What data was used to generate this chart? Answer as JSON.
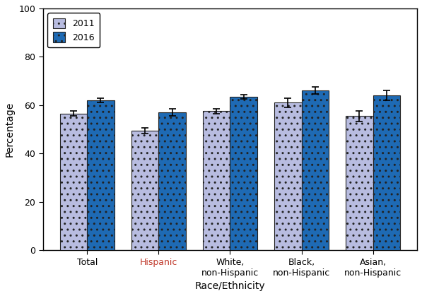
{
  "categories": [
    "Total",
    "Hispanic",
    "White,\nnon-Hispanic",
    "Black,\nnon-Hispanic",
    "Asian,\nnon-Hispanic"
  ],
  "values_2011": [
    56.5,
    49.5,
    57.5,
    61.0,
    55.5
  ],
  "values_2016": [
    62.0,
    57.0,
    63.5,
    66.0,
    64.0
  ],
  "errors_2011": [
    1.0,
    1.2,
    1.0,
    1.8,
    2.2
  ],
  "errors_2016": [
    1.0,
    1.5,
    0.8,
    1.5,
    2.0
  ],
  "color_2011": "#b8bce0",
  "color_2016": "#1e6ab4",
  "hatch_2011": "..",
  "hatch_2016": "..",
  "xlabel": "Race/Ethnicity",
  "ylabel": "Percentage",
  "ylim": [
    0,
    100
  ],
  "yticks": [
    0,
    20,
    40,
    60,
    80,
    100
  ],
  "legend_labels": [
    "2011",
    "2016"
  ],
  "bar_width": 0.38,
  "xlabel_colors": [
    "black",
    "#c0392b",
    "black",
    "black",
    "black"
  ]
}
